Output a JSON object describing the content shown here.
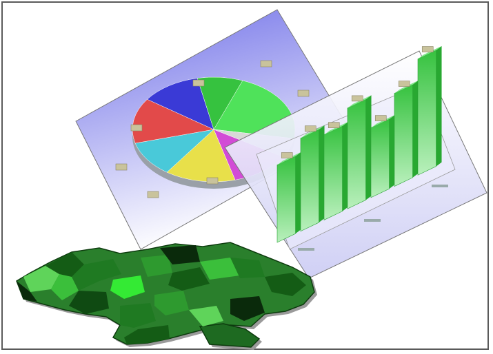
{
  "palette": {
    "pie_panel_top": "#7f7ff0",
    "pie_panel_bottom": "#ffffff",
    "bar_panel_top": "#ffffff",
    "bar_panel_bottom": "#d8d8f8",
    "bar_green": "#3fcf4a",
    "map_greens": [
      "#0f4a12",
      "#1f7a22",
      "#2e9a2f",
      "#5fd45a",
      "#3bbf3b",
      "#145c15",
      "#0a2a0b"
    ]
  },
  "pie_chart": {
    "slices": [
      {
        "color": "#4fe25a",
        "fraction": 0.22
      },
      {
        "color": "#d8d8d8",
        "fraction": 0.06
      },
      {
        "color": "#d24bd6",
        "fraction": 0.12
      },
      {
        "color": "#e8e04a",
        "fraction": 0.14
      },
      {
        "color": "#49c9d9",
        "fraction": 0.11
      },
      {
        "color": "#e24a4a",
        "fraction": 0.14
      },
      {
        "color": "#3a3ad6",
        "fraction": 0.12
      },
      {
        "color": "#36c23f",
        "fraction": 0.09
      }
    ]
  },
  "bar_chart": {
    "values": [
      5,
      6,
      5.5,
      6.5,
      4.5,
      6,
      7.5
    ]
  }
}
